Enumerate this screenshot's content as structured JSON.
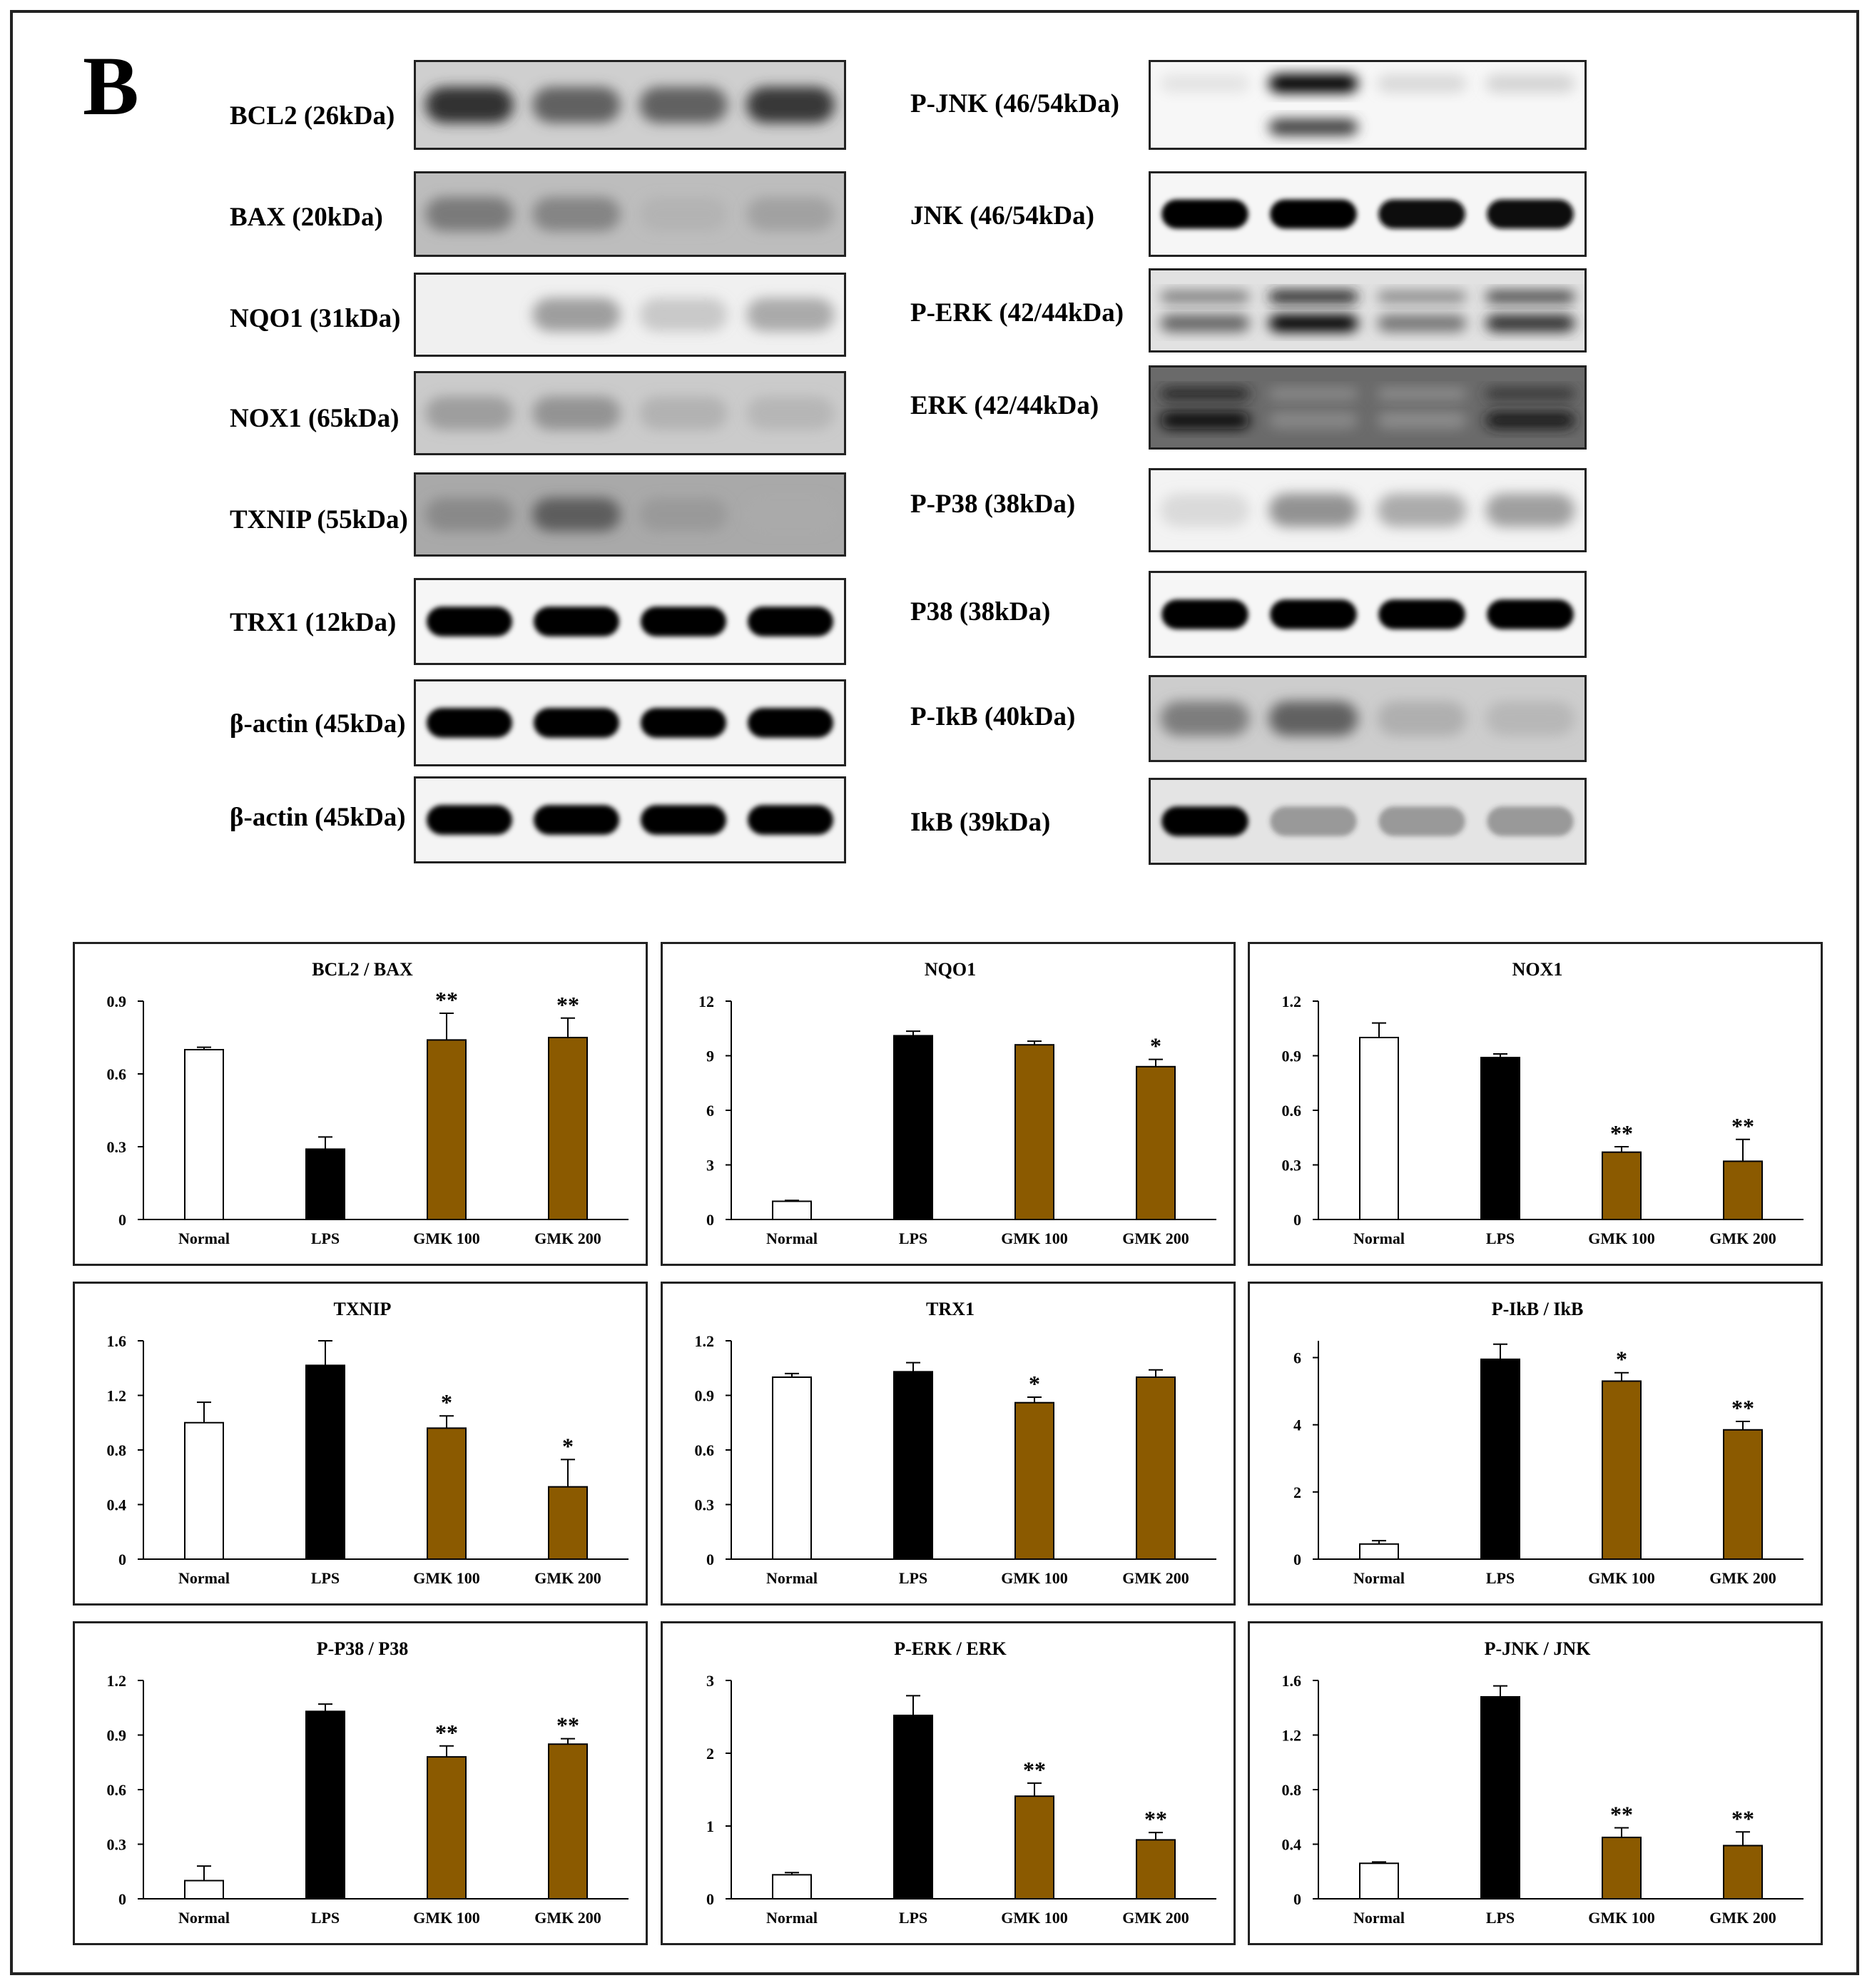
{
  "figure": {
    "panel_label": "B"
  },
  "blots": {
    "left": [
      {
        "label": "BCL2 (26kDa)",
        "bg": "#cfcfcf",
        "bands": [
          0.75,
          0.55,
          0.55,
          0.7
        ],
        "style": "diffuse"
      },
      {
        "label": "BAX (20kDa)",
        "bg": "#bdbdbd",
        "bands": [
          0.45,
          0.4,
          0.12,
          0.25
        ],
        "style": "diffuse"
      },
      {
        "label": "NQO1 (31kDa)",
        "bg": "#f0f0f0",
        "bands": [
          0.0,
          0.35,
          0.15,
          0.3
        ],
        "style": "diffuse"
      },
      {
        "label": "NOX1 (65kDa)",
        "bg": "#cbcbcb",
        "bands": [
          0.3,
          0.35,
          0.18,
          0.15
        ],
        "style": "diffuse"
      },
      {
        "label": "TXNIP (55kDa)",
        "bg": "#a9a9a9",
        "bands": [
          0.35,
          0.55,
          0.25,
          0.1
        ],
        "style": "diffuse"
      },
      {
        "label": "TRX1 (12kDa)",
        "bg": "#f6f6f6",
        "bands": [
          0.95,
          0.95,
          0.95,
          0.95
        ],
        "style": "sharp"
      },
      {
        "label": "β-actin (45kDa)",
        "bg": "#f4f4f4",
        "bands": [
          0.95,
          0.95,
          0.95,
          0.95
        ],
        "style": "sharp"
      },
      {
        "label": "β-actin (45kDa)",
        "bg": "#f4f4f4",
        "bands": [
          0.9,
          0.9,
          0.9,
          0.9
        ],
        "style": "sharp"
      }
    ],
    "right": [
      {
        "label": "P-JNK (46/54kDa)",
        "bg": "#f7f7f7",
        "bands": [
          0.05,
          0.98,
          0.12,
          0.15
        ],
        "style": "double-jnk"
      },
      {
        "label": "JNK (46/54kDa)",
        "bg": "#f6f6f6",
        "bands": [
          0.9,
          0.9,
          0.85,
          0.85
        ],
        "style": "sharp"
      },
      {
        "label": "P-ERK (42/44kDa)",
        "bg": "#e2e2e2",
        "bands": [
          0.55,
          0.98,
          0.5,
          0.75
        ],
        "style": "double"
      },
      {
        "label": "ERK (42/44kDa)",
        "bg": "#6a6a6a",
        "bands": [
          0.95,
          0.2,
          0.1,
          0.85
        ],
        "style": "double-dark"
      },
      {
        "label": "P-P38 (38kDa)",
        "bg": "#f3f3f3",
        "bands": [
          0.05,
          0.4,
          0.3,
          0.35
        ],
        "style": "diffuse"
      },
      {
        "label": "P38 (38kDa)",
        "bg": "#f6f6f6",
        "bands": [
          1.0,
          1.0,
          0.95,
          1.0
        ],
        "style": "sharp"
      },
      {
        "label": "P-IkB (40kDa)",
        "bg": "#cdcdcd",
        "bands": [
          0.45,
          0.55,
          0.2,
          0.15
        ],
        "style": "diffuse"
      },
      {
        "label": "IkB (39kDa)",
        "bg": "#e4e4e4",
        "bands": [
          1.0,
          0.08,
          0.08,
          0.08
        ],
        "style": "sharp"
      }
    ]
  },
  "colors": {
    "normal": "#ffffff",
    "lps": "#000000",
    "gmk": "#8b5a00"
  },
  "chart_data": [
    {
      "type": "bar",
      "title": "BCL2 / BAX",
      "categories": [
        "Normal",
        "LPS",
        "GMK 100",
        "GMK 200"
      ],
      "values": [
        0.7,
        0.29,
        0.74,
        0.75
      ],
      "errors": [
        0.01,
        0.05,
        0.11,
        0.08
      ],
      "sig": [
        "",
        "",
        "**",
        "**"
      ],
      "ylim": [
        0,
        0.9
      ],
      "yticks": [
        "0",
        "0.3",
        "0.6",
        "0.9"
      ]
    },
    {
      "type": "bar",
      "title": "NQO1",
      "categories": [
        "Normal",
        "LPS",
        "GMK 100",
        "GMK 200"
      ],
      "values": [
        1.0,
        10.1,
        9.6,
        8.4
      ],
      "errors": [
        0.05,
        0.25,
        0.2,
        0.4
      ],
      "sig": [
        "",
        "",
        "",
        "*"
      ],
      "ylim": [
        0,
        12
      ],
      "yticks": [
        "0",
        "3",
        "6",
        "9",
        "12"
      ]
    },
    {
      "type": "bar",
      "title": "NOX1",
      "categories": [
        "Normal",
        "LPS",
        "GMK 100",
        "GMK 200"
      ],
      "values": [
        1.0,
        0.89,
        0.37,
        0.32
      ],
      "errors": [
        0.08,
        0.02,
        0.03,
        0.12
      ],
      "sig": [
        "",
        "",
        "**",
        "**"
      ],
      "ylim": [
        0,
        1.2
      ],
      "yticks": [
        "0",
        "0.3",
        "0.6",
        "0.9",
        "1.2"
      ]
    },
    {
      "type": "bar",
      "title": "TXNIP",
      "categories": [
        "Normal",
        "LPS",
        "GMK 100",
        "GMK 200"
      ],
      "values": [
        1.0,
        1.42,
        0.96,
        0.53
      ],
      "errors": [
        0.15,
        0.18,
        0.09,
        0.2
      ],
      "sig": [
        "",
        "",
        "*",
        "*"
      ],
      "ylim": [
        0,
        1.6
      ],
      "yticks": [
        "0",
        "0.4",
        "0.8",
        "1.2",
        "1.6"
      ]
    },
    {
      "type": "bar",
      "title": "TRX1",
      "categories": [
        "Normal",
        "LPS",
        "GMK 100",
        "GMK 200"
      ],
      "values": [
        1.0,
        1.03,
        0.86,
        1.0
      ],
      "errors": [
        0.02,
        0.05,
        0.03,
        0.04
      ],
      "sig": [
        "",
        "",
        "*",
        ""
      ],
      "ylim": [
        0,
        1.2
      ],
      "yticks": [
        "0",
        "0.3",
        "0.6",
        "0.9",
        "1.2"
      ]
    },
    {
      "type": "bar",
      "title": "P-IkB / IkB",
      "categories": [
        "Normal",
        "LPS",
        "GMK 100",
        "GMK 200"
      ],
      "values": [
        0.45,
        5.95,
        5.3,
        3.85
      ],
      "errors": [
        0.1,
        0.45,
        0.25,
        0.25
      ],
      "sig": [
        "",
        "",
        "*",
        "**"
      ],
      "ylim": [
        0,
        6.5
      ],
      "yticks": [
        "0",
        "2",
        "4",
        "6"
      ]
    },
    {
      "type": "bar",
      "title": "P-P38 / P38",
      "categories": [
        "Normal",
        "LPS",
        "GMK 100",
        "GMK 200"
      ],
      "values": [
        0.1,
        1.03,
        0.78,
        0.85
      ],
      "errors": [
        0.08,
        0.04,
        0.06,
        0.03
      ],
      "sig": [
        "",
        "",
        "**",
        "**"
      ],
      "ylim": [
        0,
        1.2
      ],
      "yticks": [
        "0",
        "0.3",
        "0.6",
        "0.9",
        "1.2"
      ]
    },
    {
      "type": "bar",
      "title": "P-ERK / ERK",
      "categories": [
        "Normal",
        "LPS",
        "GMK 100",
        "GMK 200"
      ],
      "values": [
        0.33,
        2.52,
        1.41,
        0.81
      ],
      "errors": [
        0.03,
        0.27,
        0.18,
        0.1
      ],
      "sig": [
        "",
        "",
        "**",
        "**"
      ],
      "ylim": [
        0,
        3
      ],
      "yticks": [
        "0",
        "1",
        "2",
        "3"
      ]
    },
    {
      "type": "bar",
      "title": "P-JNK / JNK",
      "categories": [
        "Normal",
        "LPS",
        "GMK 100",
        "GMK 200"
      ],
      "values": [
        0.26,
        1.48,
        0.45,
        0.39
      ],
      "errors": [
        0.01,
        0.08,
        0.07,
        0.1
      ],
      "sig": [
        "",
        "",
        "**",
        "**"
      ],
      "ylim": [
        0,
        1.6
      ],
      "yticks": [
        "0",
        "0.4",
        "0.8",
        "1.2",
        "1.6"
      ]
    }
  ]
}
